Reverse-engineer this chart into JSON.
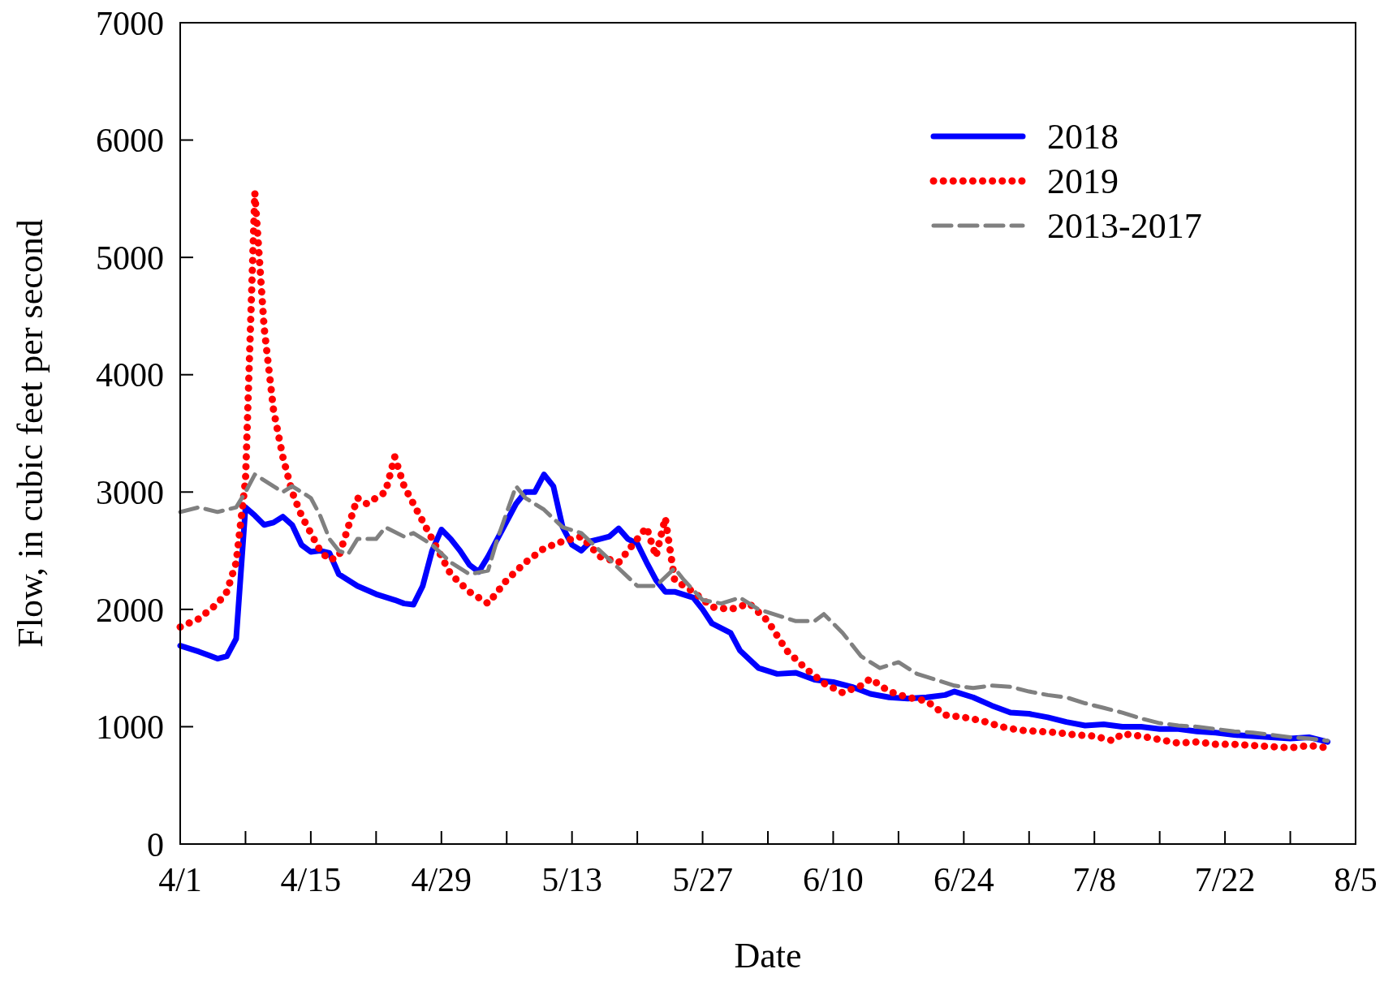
{
  "chart_data": {
    "type": "line",
    "xlabel": "Date",
    "ylabel": "Flow, in cubic feet per second",
    "xlim": [
      "--04-01",
      "--08-05"
    ],
    "ylim": [
      0,
      7000
    ],
    "xticks": [
      {
        "value": "--04-01",
        "label": "4/1"
      },
      {
        "value": "--04-08",
        "label": null
      },
      {
        "value": "--04-15",
        "label": "4/15"
      },
      {
        "value": "--04-22",
        "label": null
      },
      {
        "value": "--04-29",
        "label": "4/29"
      },
      {
        "value": "--05-06",
        "label": null
      },
      {
        "value": "--05-13",
        "label": "5/13"
      },
      {
        "value": "--05-20",
        "label": null
      },
      {
        "value": "--05-27",
        "label": "5/27"
      },
      {
        "value": "--06-03",
        "label": null
      },
      {
        "value": "--06-10",
        "label": "6/10"
      },
      {
        "value": "--06-17",
        "label": null
      },
      {
        "value": "--06-24",
        "label": "6/24"
      },
      {
        "value": "--07-01",
        "label": null
      },
      {
        "value": "--07-08",
        "label": "7/8"
      },
      {
        "value": "--07-15",
        "label": null
      },
      {
        "value": "--07-22",
        "label": "7/22"
      },
      {
        "value": "--07-29",
        "label": null
      },
      {
        "value": "--08-05",
        "label": "8/5"
      }
    ],
    "yticks": [
      0,
      1000,
      2000,
      3000,
      4000,
      5000,
      6000,
      7000
    ],
    "grid": false,
    "legend": "top right",
    "series": [
      {
        "name": "2018",
        "color": "#0000ff",
        "line_style": "solid",
        "x": [
          "--04-01",
          "--04-03",
          "--04-05",
          "--04-06",
          "--04-07",
          "--04-08",
          "--04-09",
          "--04-10",
          "--04-11",
          "--04-12",
          "--04-13",
          "--04-14",
          "--04-15",
          "--04-16",
          "--04-17",
          "--04-18",
          "--04-20",
          "--04-22",
          "--04-24",
          "--04-25",
          "--04-26",
          "--04-27",
          "--04-28",
          "--04-29",
          "--04-30",
          "--05-01",
          "--05-02",
          "--05-03",
          "--05-04",
          "--05-05",
          "--05-07",
          "--05-08",
          "--05-09",
          "--05-10",
          "--05-11",
          "--05-12",
          "--05-13",
          "--05-14",
          "--05-15",
          "--05-16",
          "--05-17",
          "--05-18",
          "--05-19",
          "--05-20",
          "--05-21",
          "--05-22",
          "--05-23",
          "--05-24",
          "--05-26",
          "--05-27",
          "--05-28",
          "--05-30",
          "--05-31",
          "--06-02",
          "--06-04",
          "--06-06",
          "--06-08",
          "--06-10",
          "--06-12",
          "--06-14",
          "--06-16",
          "--06-18",
          "--06-20",
          "--06-22",
          "--06-23",
          "--06-25",
          "--06-27",
          "--06-29",
          "--07-01",
          "--07-03",
          "--07-05",
          "--07-07",
          "--07-09",
          "--07-11",
          "--07-13",
          "--07-15",
          "--07-17",
          "--07-19",
          "--07-21",
          "--07-23",
          "--07-25",
          "--07-27",
          "--07-29",
          "--07-31",
          "--08-02"
        ],
        "values": [
          1690,
          1640,
          1580,
          1600,
          1750,
          2870,
          2800,
          2720,
          2740,
          2790,
          2720,
          2550,
          2490,
          2500,
          2480,
          2300,
          2200,
          2130,
          2080,
          2050,
          2040,
          2200,
          2500,
          2680,
          2600,
          2500,
          2380,
          2320,
          2450,
          2600,
          2900,
          3000,
          3000,
          3150,
          3050,
          2700,
          2550,
          2500,
          2580,
          2600,
          2620,
          2690,
          2600,
          2560,
          2400,
          2250,
          2150,
          2150,
          2100,
          2000,
          1880,
          1800,
          1650,
          1500,
          1450,
          1460,
          1400,
          1380,
          1340,
          1280,
          1250,
          1240,
          1250,
          1270,
          1300,
          1250,
          1180,
          1120,
          1110,
          1080,
          1040,
          1010,
          1020,
          1000,
          1000,
          980,
          980,
          960,
          950,
          930,
          920,
          910,
          900,
          910,
          870
        ]
      },
      {
        "name": "2019",
        "color": "#ff0000",
        "line_style": "dotted",
        "x": [
          "--04-01",
          "--04-03",
          "--04-05",
          "--04-06",
          "--04-07",
          "--04-08",
          "--04-09",
          "--04-10",
          "--04-11",
          "--04-12",
          "--04-13",
          "--04-14",
          "--04-15",
          "--04-16",
          "--04-17",
          "--04-18",
          "--04-19",
          "--04-20",
          "--04-21",
          "--04-22",
          "--04-23",
          "--04-24",
          "--04-25",
          "--04-26",
          "--04-27",
          "--04-28",
          "--04-30",
          "--05-02",
          "--05-04",
          "--05-06",
          "--05-08",
          "--05-10",
          "--05-12",
          "--05-14",
          "--05-16",
          "--05-18",
          "--05-20",
          "--05-21",
          "--05-22",
          "--05-23",
          "--05-24",
          "--05-26",
          "--05-28",
          "--05-30",
          "--06-01",
          "--06-03",
          "--06-05",
          "--06-07",
          "--06-09",
          "--06-11",
          "--06-13",
          "--06-14",
          "--06-16",
          "--06-18",
          "--06-20",
          "--06-22",
          "--06-24",
          "--06-26",
          "--06-28",
          "--06-30",
          "--07-02",
          "--07-04",
          "--07-06",
          "--07-08",
          "--07-10",
          "--07-11",
          "--07-13",
          "--07-15",
          "--07-17",
          "--07-19",
          "--07-21",
          "--07-23",
          "--07-25",
          "--07-27",
          "--07-29",
          "--07-31",
          "--08-02"
        ],
        "values": [
          1850,
          1920,
          2050,
          2150,
          2400,
          3100,
          5550,
          4400,
          3700,
          3300,
          3000,
          2800,
          2650,
          2500,
          2420,
          2450,
          2700,
          2950,
          2900,
          2950,
          3000,
          3300,
          3050,
          2900,
          2750,
          2600,
          2300,
          2150,
          2050,
          2250,
          2400,
          2520,
          2580,
          2620,
          2450,
          2400,
          2600,
          2700,
          2450,
          2780,
          2250,
          2150,
          2020,
          2000,
          2050,
          1900,
          1650,
          1500,
          1370,
          1290,
          1350,
          1410,
          1300,
          1250,
          1220,
          1100,
          1080,
          1050,
          1000,
          970,
          960,
          950,
          930,
          920,
          880,
          940,
          920,
          890,
          860,
          870,
          850,
          850,
          840,
          830,
          820,
          840,
          820
        ]
      },
      {
        "name": "2013-2017",
        "color": "#808080",
        "line_style": "dashed",
        "x": [
          "--04-01",
          "--04-03",
          "--04-05",
          "--04-07",
          "--04-08",
          "--04-09",
          "--04-10",
          "--04-11",
          "--04-12",
          "--04-13",
          "--04-14",
          "--04-15",
          "--04-16",
          "--04-17",
          "--04-18",
          "--04-19",
          "--04-20",
          "--04-22",
          "--04-23",
          "--04-25",
          "--04-26",
          "--04-28",
          "--04-30",
          "--05-02",
          "--05-04",
          "--05-05",
          "--05-07",
          "--05-08",
          "--05-10",
          "--05-12",
          "--05-14",
          "--05-16",
          "--05-18",
          "--05-20",
          "--05-22",
          "--05-24",
          "--05-25",
          "--05-27",
          "--05-29",
          "--05-31",
          "--06-02",
          "--06-04",
          "--06-06",
          "--06-08",
          "--06-09",
          "--06-11",
          "--06-13",
          "--06-15",
          "--06-17",
          "--06-19",
          "--06-21",
          "--06-23",
          "--06-25",
          "--06-27",
          "--06-29",
          "--07-01",
          "--07-03",
          "--07-05",
          "--07-07",
          "--07-09",
          "--07-11",
          "--07-13",
          "--07-15",
          "--07-17",
          "--07-19",
          "--07-21",
          "--07-23",
          "--07-25",
          "--07-27",
          "--07-29",
          "--07-31",
          "--08-02"
        ],
        "values": [
          2830,
          2870,
          2830,
          2870,
          3000,
          3150,
          3100,
          3050,
          3000,
          3050,
          3000,
          2950,
          2800,
          2600,
          2500,
          2470,
          2600,
          2600,
          2700,
          2620,
          2650,
          2550,
          2400,
          2300,
          2330,
          2600,
          3050,
          2950,
          2850,
          2700,
          2650,
          2500,
          2350,
          2200,
          2200,
          2350,
          2250,
          2080,
          2050,
          2100,
          2000,
          1950,
          1900,
          1900,
          1960,
          1800,
          1600,
          1500,
          1550,
          1450,
          1400,
          1350,
          1330,
          1350,
          1340,
          1300,
          1270,
          1250,
          1200,
          1160,
          1120,
          1070,
          1030,
          1010,
          1000,
          980,
          960,
          950,
          930,
          910,
          900,
          880
        ]
      }
    ]
  }
}
